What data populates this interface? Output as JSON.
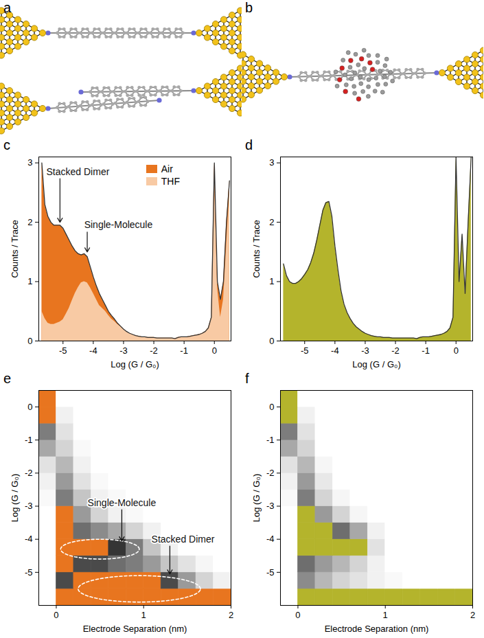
{
  "chart_data": [
    {
      "panel": "a",
      "type": "diagram"
    },
    {
      "panel": "b",
      "type": "diagram"
    },
    {
      "panel": "c",
      "type": "area",
      "xlabel": "Log (G / G₀)",
      "ylabel": "Counts / Trace",
      "xlim": [
        -5.8,
        0.55
      ],
      "xticks": [
        -5,
        -4,
        -3,
        -2,
        -1,
        0
      ],
      "ylim": [
        0,
        3.1
      ],
      "yticks": [
        0,
        1,
        2,
        3
      ],
      "legend": "top-right",
      "x": [
        -5.7,
        -5.6,
        -5.5,
        -5.4,
        -5.3,
        -5.2,
        -5.1,
        -5.0,
        -4.9,
        -4.8,
        -4.7,
        -4.6,
        -4.5,
        -4.4,
        -4.3,
        -4.2,
        -4.1,
        -4.0,
        -3.9,
        -3.8,
        -3.7,
        -3.6,
        -3.5,
        -3.4,
        -3.3,
        -3.2,
        -3.1,
        -3.0,
        -2.9,
        -2.8,
        -2.7,
        -2.6,
        -2.5,
        -2.4,
        -2.3,
        -2.2,
        -2.1,
        -2.0,
        -1.9,
        -1.8,
        -1.7,
        -1.6,
        -1.5,
        -1.4,
        -1.3,
        -1.2,
        -1.1,
        -1.0,
        -0.9,
        -0.8,
        -0.7,
        -0.6,
        -0.5,
        -0.4,
        -0.3,
        -0.2,
        -0.1,
        0.0,
        0.1,
        0.2,
        0.3,
        0.4,
        0.5
      ],
      "series": [
        {
          "name": "Air",
          "color": "#e8751f",
          "values": [
            3.0,
            2.3,
            2.1,
            2.0,
            1.95,
            1.95,
            1.95,
            1.9,
            1.8,
            1.7,
            1.6,
            1.52,
            1.47,
            1.45,
            1.47,
            1.42,
            1.25,
            1.08,
            0.93,
            0.8,
            0.7,
            0.6,
            0.5,
            0.43,
            0.37,
            0.3,
            0.25,
            0.2,
            0.16,
            0.13,
            0.11,
            0.09,
            0.08,
            0.07,
            0.07,
            0.06,
            0.06,
            0.06,
            0.05,
            0.05,
            0.05,
            0.05,
            0.05,
            0.05,
            0.04,
            0.06,
            0.07,
            0.07,
            0.07,
            0.08,
            0.09,
            0.1,
            0.11,
            0.13,
            0.16,
            0.22,
            0.4,
            3.0,
            1.0,
            0.7,
            1.0,
            2.0,
            2.7
          ]
        },
        {
          "name": "THF",
          "color": "#f8caa4",
          "values": [
            0.5,
            0.38,
            0.3,
            0.28,
            0.28,
            0.3,
            0.32,
            0.36,
            0.45,
            0.55,
            0.68,
            0.8,
            0.9,
            0.98,
            1.0,
            0.98,
            0.9,
            0.8,
            0.7,
            0.6,
            0.55,
            0.5,
            0.43,
            0.37,
            0.33,
            0.28,
            0.24,
            0.2,
            0.16,
            0.13,
            0.11,
            0.09,
            0.08,
            0.07,
            0.07,
            0.06,
            0.06,
            0.06,
            0.05,
            0.05,
            0.05,
            0.05,
            0.05,
            0.05,
            0.04,
            0.06,
            0.07,
            0.07,
            0.07,
            0.08,
            0.09,
            0.1,
            0.11,
            0.13,
            0.16,
            0.22,
            0.4,
            2.8,
            0.9,
            0.4,
            0.7,
            1.6,
            2.5
          ]
        }
      ],
      "annotations": [
        {
          "text": "Stacked Dimer",
          "x": -5.55,
          "y": 2.85,
          "target": [
            -5.1,
            2.0
          ]
        },
        {
          "text": "Single-Molecule",
          "x": -4.3,
          "y": 1.95,
          "target": [
            -4.2,
            1.5
          ]
        }
      ]
    },
    {
      "panel": "d",
      "type": "area",
      "xlabel": "Log (G / G₀)",
      "ylabel": "Counts / Trace",
      "xlim": [
        -5.8,
        0.55
      ],
      "xticks": [
        -5,
        -4,
        -3,
        -2,
        -1,
        0
      ],
      "ylim": [
        0,
        3.1
      ],
      "yticks": [
        0,
        1,
        2,
        3
      ],
      "x": [
        -5.7,
        -5.6,
        -5.5,
        -5.4,
        -5.3,
        -5.2,
        -5.1,
        -5.0,
        -4.9,
        -4.8,
        -4.7,
        -4.6,
        -4.5,
        -4.4,
        -4.3,
        -4.2,
        -4.1,
        -4.0,
        -3.9,
        -3.8,
        -3.7,
        -3.6,
        -3.5,
        -3.4,
        -3.3,
        -3.2,
        -3.1,
        -3.0,
        -2.9,
        -2.8,
        -2.7,
        -2.6,
        -2.5,
        -2.4,
        -2.3,
        -2.2,
        -2.1,
        -2.0,
        -1.9,
        -1.8,
        -1.7,
        -1.6,
        -1.5,
        -1.4,
        -1.3,
        -1.2,
        -1.1,
        -1.0,
        -0.9,
        -0.8,
        -0.7,
        -0.6,
        -0.5,
        -0.4,
        -0.3,
        -0.2,
        -0.1,
        0.0,
        0.1,
        0.2,
        0.3,
        0.4,
        0.5
      ],
      "color": "#b4b42c",
      "values": [
        1.3,
        1.1,
        1.0,
        0.97,
        0.97,
        1.0,
        1.05,
        1.12,
        1.2,
        1.32,
        1.48,
        1.7,
        1.95,
        2.2,
        2.33,
        2.35,
        2.1,
        1.6,
        1.2,
        0.85,
        0.62,
        0.48,
        0.38,
        0.3,
        0.24,
        0.2,
        0.16,
        0.13,
        0.11,
        0.09,
        0.08,
        0.07,
        0.07,
        0.06,
        0.06,
        0.06,
        0.05,
        0.05,
        0.05,
        0.05,
        0.05,
        0.05,
        0.05,
        0.05,
        0.04,
        0.06,
        0.07,
        0.07,
        0.07,
        0.08,
        0.09,
        0.1,
        0.11,
        0.13,
        0.16,
        0.22,
        0.4,
        3.1,
        1.0,
        1.8,
        0.8,
        2.0,
        3.1
      ]
    },
    {
      "panel": "e",
      "type": "heatmap",
      "xlabel": "Electrode Separation (nm)",
      "ylabel": "Log (G / G₀)",
      "xlim": [
        -0.2,
        2
      ],
      "xticks": [
        0,
        1,
        2
      ],
      "ylim": [
        -6,
        0.5
      ],
      "yticks": [
        -5,
        -4,
        -3,
        -2,
        -1,
        0
      ],
      "color": "#e8751f",
      "zlim": [
        0,
        1
      ],
      "x_bins": [
        -0.2,
        0,
        0.2,
        0.4,
        0.6,
        0.8,
        1,
        1.2,
        1.4,
        1.6,
        1.8,
        2
      ],
      "y_bins": [
        -6,
        -5.5,
        -5,
        -4.5,
        -4,
        -3.5,
        -3,
        -2.5,
        -2,
        -1.5,
        -1,
        -0.5,
        0,
        0.5
      ],
      "counts": [
        [
          0,
          0.9,
          0.95,
          0.95,
          0.95,
          0.95,
          0.95,
          0.95,
          0.95,
          0.95,
          0.95
        ],
        [
          0,
          0.55,
          0.6,
          0.62,
          0.65,
          0.65,
          0.62,
          0.55,
          0.35,
          0.15,
          0.05
        ],
        [
          0,
          0.6,
          0.55,
          0.55,
          0.5,
          0.45,
          0.35,
          0.2,
          0.1,
          0.03,
          0
        ],
        [
          0,
          0.7,
          0.62,
          0.62,
          0.58,
          0.45,
          0.2,
          0.05,
          0,
          0,
          0
        ],
        [
          0,
          0.65,
          0.5,
          0.4,
          0.3,
          0.15,
          0.05,
          0,
          0,
          0,
          0
        ],
        [
          0,
          0.6,
          0.35,
          0.15,
          0.05,
          0.02,
          0,
          0,
          0,
          0,
          0
        ],
        [
          0.02,
          0.45,
          0.2,
          0.05,
          0.02,
          0,
          0,
          0,
          0,
          0,
          0
        ],
        [
          0.05,
          0.35,
          0.1,
          0.02,
          0,
          0,
          0,
          0,
          0,
          0,
          0
        ],
        [
          0.1,
          0.25,
          0.05,
          0,
          0,
          0,
          0,
          0,
          0,
          0,
          0
        ],
        [
          0.3,
          0.15,
          0.02,
          0,
          0,
          0,
          0,
          0,
          0,
          0,
          0
        ],
        [
          0.45,
          0.1,
          0,
          0,
          0,
          0,
          0,
          0,
          0,
          0,
          0
        ],
        [
          0.8,
          0.05,
          0,
          0,
          0,
          0,
          0,
          0,
          0,
          0,
          0
        ],
        [
          1,
          0,
          0,
          0,
          0,
          0,
          0,
          0,
          0,
          0,
          0
        ]
      ],
      "annotations": [
        {
          "text": "Single-Molecule",
          "x": 0.75,
          "y": -2.9,
          "target": [
            0.75,
            -4.05
          ],
          "region": {
            "cx": 0.5,
            "cy": -4.3,
            "rx": 0.45,
            "ry": 0.3
          }
        },
        {
          "text": "Stacked Dimer",
          "x": 1.45,
          "y": -4.0,
          "target": [
            1.3,
            -5.05
          ],
          "region": {
            "cx": 0.95,
            "cy": -5.5,
            "rx": 0.7,
            "ry": 0.4
          }
        }
      ]
    },
    {
      "panel": "f",
      "type": "heatmap",
      "xlabel": "Electrode Separation (nm)",
      "ylabel": "Log (G / G₀)",
      "xlim": [
        -0.2,
        2
      ],
      "xticks": [
        0,
        1,
        2
      ],
      "ylim": [
        -6,
        0.5
      ],
      "yticks": [
        -5,
        -4,
        -3,
        -2,
        -1,
        0
      ],
      "color": "#b4b42c",
      "zlim": [
        0,
        1
      ],
      "x_bins": [
        -0.2,
        0,
        0.2,
        0.4,
        0.6,
        0.8,
        1,
        1.2,
        1.4,
        1.6,
        1.8,
        2
      ],
      "y_bins": [
        -6,
        -5.5,
        -5,
        -4.5,
        -4,
        -3.5,
        -3,
        -2.5,
        -2,
        -1.5,
        -1,
        -0.5,
        0,
        0.5
      ],
      "counts": [
        [
          0,
          0.9,
          0.95,
          0.95,
          0.95,
          0.95,
          0.95,
          0.95,
          0.95,
          0.95,
          0.95
        ],
        [
          0,
          0.4,
          0.25,
          0.15,
          0.1,
          0.05,
          0.02,
          0,
          0,
          0,
          0
        ],
        [
          0,
          0.5,
          0.35,
          0.25,
          0.15,
          0.05,
          0,
          0,
          0,
          0,
          0
        ],
        [
          0,
          0.75,
          0.7,
          0.65,
          0.6,
          0.1,
          0,
          0,
          0,
          0,
          0
        ],
        [
          0,
          0.7,
          0.6,
          0.5,
          0.3,
          0.05,
          0,
          0,
          0,
          0,
          0
        ],
        [
          0,
          0.6,
          0.35,
          0.15,
          0.03,
          0,
          0,
          0,
          0,
          0,
          0
        ],
        [
          0.02,
          0.45,
          0.15,
          0.03,
          0,
          0,
          0,
          0,
          0,
          0,
          0
        ],
        [
          0.05,
          0.35,
          0.08,
          0,
          0,
          0,
          0,
          0,
          0,
          0,
          0
        ],
        [
          0.1,
          0.25,
          0.03,
          0,
          0,
          0,
          0,
          0,
          0,
          0,
          0
        ],
        [
          0.3,
          0.15,
          0,
          0,
          0,
          0,
          0,
          0,
          0,
          0,
          0
        ],
        [
          0.45,
          0.1,
          0,
          0,
          0,
          0,
          0,
          0,
          0,
          0,
          0
        ],
        [
          0.8,
          0.05,
          0,
          0,
          0,
          0,
          0,
          0,
          0,
          0,
          0
        ],
        [
          1,
          0,
          0,
          0,
          0,
          0,
          0,
          0,
          0,
          0,
          0
        ]
      ]
    }
  ]
}
